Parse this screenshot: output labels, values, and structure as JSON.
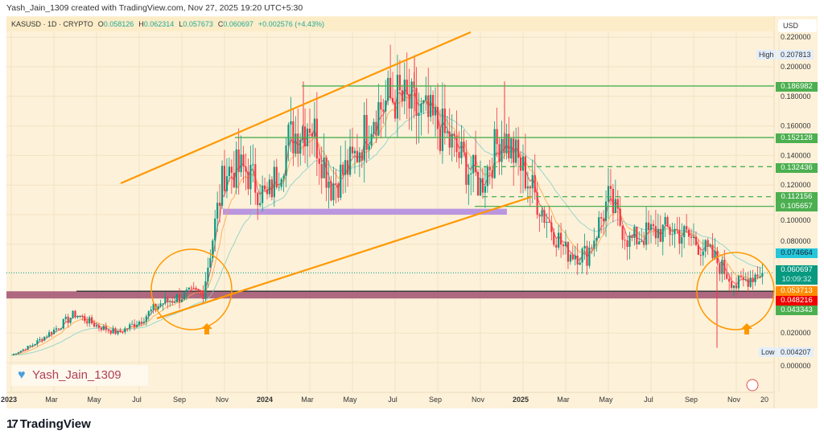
{
  "header": {
    "credit": "Yash_Jain_1309 created with TradingView.com, Nov 27, 2025 19:20 UTC+5:30"
  },
  "legend": {
    "symbol": "KASUSD · 1D · CRYPTO",
    "open_label": "O",
    "open": "0.058126",
    "high_label": "H",
    "high": "0.062314",
    "low_label": "L",
    "low": "0.057673",
    "close_label": "C",
    "close": "0.060697",
    "change": "+0.002576 (+4.43%)"
  },
  "price_axis": {
    "currency": "USD",
    "ticks": [
      "0.220000",
      "0.200000",
      "0.180000",
      "0.160000",
      "0.140000",
      "0.120000",
      "0.100000",
      "0.080000",
      "0.020000",
      "0.000000"
    ],
    "high_label": "High",
    "high_value": "0.207813",
    "low_label": "Low",
    "low_value": "0.004207",
    "tags": [
      {
        "value": "0.186982",
        "color": "#4caf50"
      },
      {
        "value": "0.152128",
        "color": "#4caf50"
      },
      {
        "value": "0.132436",
        "color": "#4caf50"
      },
      {
        "value": "0.112156",
        "color": "#4caf50"
      },
      {
        "value": "0.105657",
        "color": "#4caf50"
      },
      {
        "value": "0.074664",
        "color": "#26c6da"
      },
      {
        "value": "0.060697",
        "color": "#089981"
      },
      {
        "value": "0.053713",
        "color": "#ff8c00"
      },
      {
        "value": "0.048216",
        "color": "#f00000"
      },
      {
        "value": "0.043343",
        "color": "#4caf50"
      }
    ],
    "countdown": "10:09:32"
  },
  "time_axis": {
    "labels": [
      "2023",
      "Mar",
      "May",
      "Jul",
      "Sep",
      "Nov",
      "2024",
      "Mar",
      "May",
      "Jul",
      "Sep",
      "Nov",
      "2025",
      "Mar",
      "May",
      "Jul",
      "Sep",
      "Nov",
      "20"
    ]
  },
  "chart_data": {
    "type": "candlestick",
    "symbol": "KASUSD",
    "interval": "1D",
    "ylim": [
      0,
      0.22
    ],
    "x_start": "2023-01",
    "approx_monthly_close": [
      0.005,
      0.012,
      0.022,
      0.033,
      0.025,
      0.02,
      0.028,
      0.04,
      0.045,
      0.048,
      0.13,
      0.13,
      0.11,
      0.15,
      0.165,
      0.12,
      0.135,
      0.17,
      0.18,
      0.17,
      0.16,
      0.14,
      0.12,
      0.155,
      0.13,
      0.1,
      0.075,
      0.073,
      0.11,
      0.082,
      0.088,
      0.09,
      0.083,
      0.07,
      0.052,
      0.0607
    ],
    "colors": {
      "up": "#089981",
      "down": "#f23645",
      "ma_fast": "#f23645",
      "ma_mid": "#ffa040",
      "ma_slow": "#7fd0c8"
    }
  },
  "drawings": {
    "horizontal_levels": [
      0.186982,
      0.152128,
      0.132436,
      0.112156,
      0.105657
    ],
    "support_zone": [
      0.043343,
      0.048216
    ],
    "purple_zone": [
      0.1,
      0.104
    ],
    "colors": {
      "channel": "#ff9800",
      "levels": "#4caf50",
      "support_zone": "#a0506e",
      "purple_zone": "#b48ce0"
    }
  },
  "watermark": {
    "text": "Yash_Jain_1309"
  },
  "branding": {
    "logo_text": "TradingView"
  }
}
